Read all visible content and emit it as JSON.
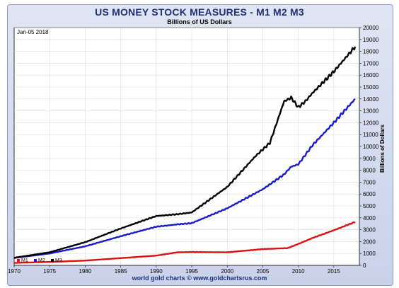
{
  "header": {
    "title": "US MONEY STOCK MEASURES - M1 M2 M3",
    "subtitle": "Billions of US Dollars",
    "date_label": "Jan-05 2018"
  },
  "footer": {
    "credit": "world gold charts © www.goldchartsrus.com"
  },
  "colors": {
    "M1": "#dd1111",
    "M2": "#1a1acc",
    "M3": "#000000",
    "title": "#1f2f78",
    "frame": "#c9d2ea"
  },
  "chart_data": {
    "type": "line",
    "ylabel": "Billions of Dollars",
    "xlim": [
      1970,
      2018.6
    ],
    "ylim": [
      0,
      20000
    ],
    "x_ticks": [
      1970,
      1975,
      1980,
      1985,
      1990,
      1995,
      2000,
      2005,
      2010,
      2015
    ],
    "y_ticks": [
      0,
      1000,
      2000,
      3000,
      4000,
      5000,
      6000,
      7000,
      8000,
      9000,
      10000,
      11000,
      12000,
      13000,
      14000,
      15000,
      16000,
      17000,
      18000,
      19000,
      20000
    ],
    "grid": true,
    "legend_position": "bottom-left",
    "series": [
      {
        "name": "M1",
        "x": [
          1970,
          1975,
          1980,
          1985,
          1990,
          1993,
          1995,
          2000,
          2005,
          2008.5,
          2010,
          2012,
          2015,
          2018
        ],
        "y": [
          210,
          290,
          400,
          610,
          820,
          1100,
          1120,
          1100,
          1370,
          1450,
          1800,
          2300,
          2950,
          3650
        ]
      },
      {
        "name": "M2",
        "x": [
          1970,
          1975,
          1980,
          1985,
          1990,
          1993,
          1995,
          2000,
          2005,
          2008,
          2009,
          2010,
          2012,
          2015,
          2018
        ],
        "y": [
          620,
          1000,
          1600,
          2450,
          3250,
          3450,
          3550,
          4800,
          6400,
          7650,
          8300,
          8500,
          10100,
          12000,
          14000
        ]
      },
      {
        "name": "M3",
        "x": [
          1970,
          1975,
          1980,
          1985,
          1990,
          1993,
          1995,
          2000,
          2004,
          2006,
          2008,
          2009,
          2010,
          2011,
          2012,
          2015,
          2018
        ],
        "y": [
          640,
          1100,
          1950,
          3100,
          4150,
          4300,
          4450,
          6600,
          9200,
          10300,
          13800,
          14100,
          13300,
          13800,
          14500,
          16300,
          18400
        ]
      }
    ]
  }
}
